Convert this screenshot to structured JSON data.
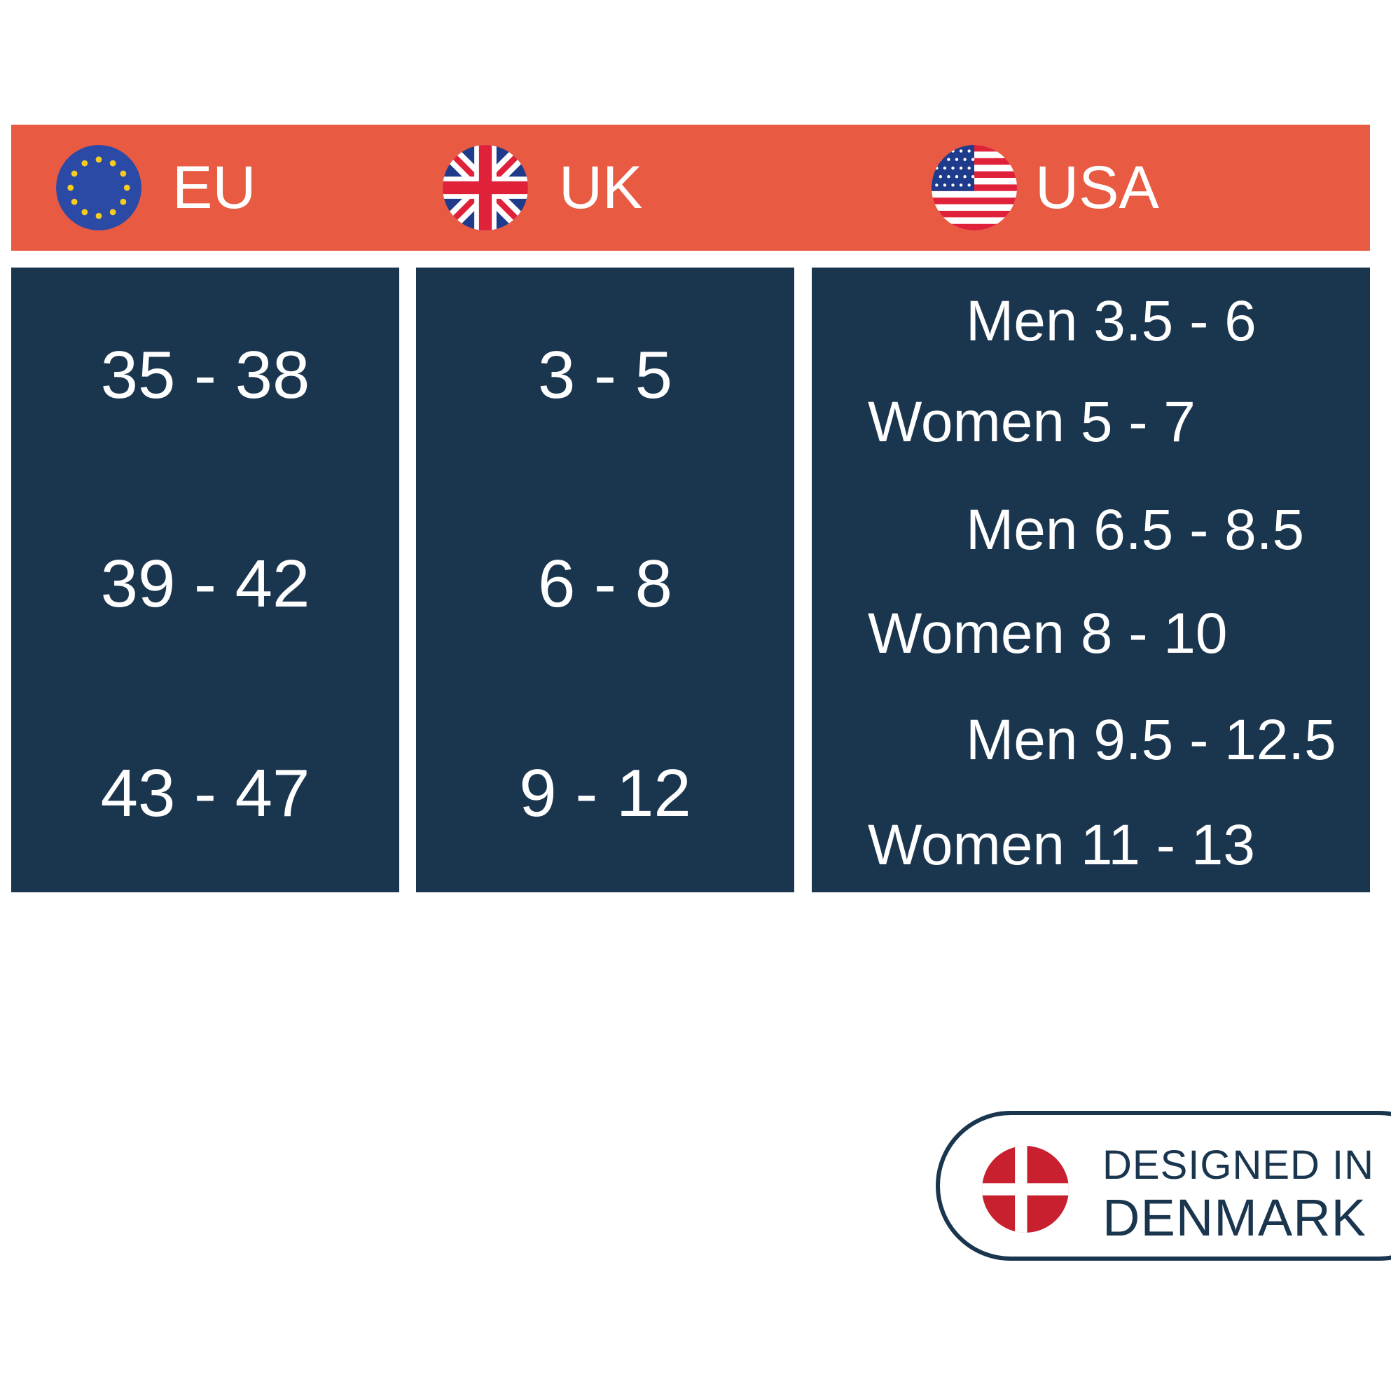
{
  "header": {
    "eu_label": "EU",
    "uk_label": "UK",
    "usa_label": "USA",
    "background_color": "#e85a42"
  },
  "table": {
    "cell_color": "#1a354e",
    "eu": [
      "35 - 38",
      "39 - 42",
      "43 - 47"
    ],
    "uk": [
      "3 - 5",
      "6 - 8",
      "9 - 12"
    ],
    "usa": [
      {
        "men": "Men 3.5 - 6",
        "women": "Women 5 - 7"
      },
      {
        "men": "Men 6.5 - 8.5",
        "women": "Women 8 - 10"
      },
      {
        "men": "Men 9.5 - 12.5",
        "women": "Women 11 - 13"
      }
    ]
  },
  "badge": {
    "line1": "DESIGNED IN",
    "line2": "DENMARK",
    "flag_icon": "denmark-flag-icon"
  },
  "icons": {
    "eu": "eu-flag-icon",
    "uk": "uk-flag-icon",
    "usa": "usa-flag-icon"
  }
}
